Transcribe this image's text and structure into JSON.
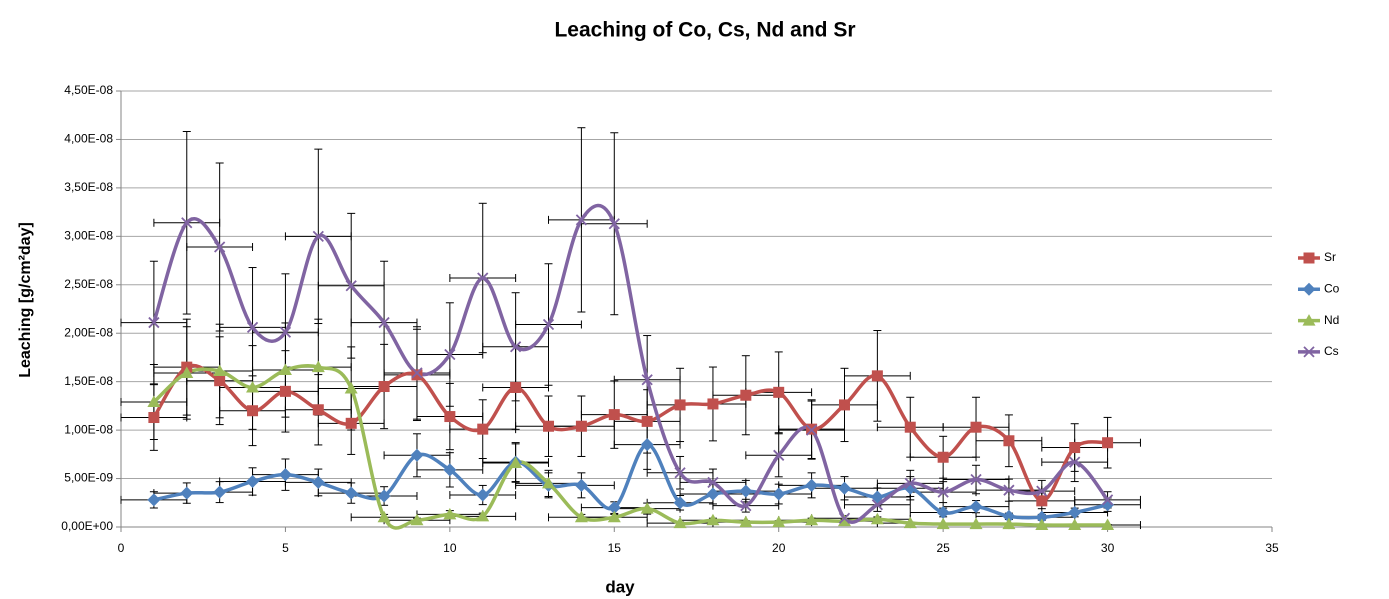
{
  "chart_data": {
    "type": "line",
    "title": "Leaching of Co, Cs, Nd and Sr",
    "x_label": "day",
    "y_label": "Leaching [g/cm²day]",
    "x": [
      1,
      2,
      3,
      4,
      5,
      6,
      7,
      8,
      9,
      10,
      11,
      12,
      13,
      14,
      15,
      16,
      17,
      18,
      19,
      20,
      21,
      22,
      23,
      24,
      25,
      26,
      27,
      28,
      29,
      30
    ],
    "series": [
      {
        "name": "Sr",
        "color": "#c0504d",
        "marker": "square",
        "values": [
          1.13e-08,
          1.65e-08,
          1.51e-08,
          1.2e-08,
          1.4e-08,
          1.21e-08,
          1.07e-08,
          1.45e-08,
          1.57e-08,
          1.14e-08,
          1.01e-08,
          1.44e-08,
          1.04e-08,
          1.04e-08,
          1.16e-08,
          1.09e-08,
          1.26e-08,
          1.27e-08,
          1.36e-08,
          1.39e-08,
          1.01e-08,
          1.26e-08,
          1.56e-08,
          1.03e-08,
          7.2e-09,
          1.03e-08,
          8.9e-09,
          2.7e-09,
          8.2e-09,
          8.7e-09
        ]
      },
      {
        "name": "Co",
        "color": "#4f81bd",
        "marker": "diamond",
        "values": [
          2.8e-09,
          3.5e-09,
          3.6e-09,
          4.7e-09,
          5.4e-09,
          4.6e-09,
          3.5e-09,
          3.2e-09,
          7.4e-09,
          5.9e-09,
          3.3e-09,
          6.7e-09,
          4.3e-09,
          4.3e-09,
          2e-09,
          8.5e-09,
          2.5e-09,
          3.4e-09,
          3.7e-09,
          3.4e-09,
          4.3e-09,
          4e-09,
          3.1e-09,
          4e-09,
          1.5e-09,
          2.1e-09,
          1.1e-09,
          1e-09,
          1.5e-09,
          2.3e-09
        ]
      },
      {
        "name": "Nd",
        "color": "#9bbb59",
        "marker": "triangle",
        "values": [
          1.29e-08,
          1.59e-08,
          1.61e-08,
          1.44e-08,
          1.62e-08,
          1.65e-08,
          1.43e-08,
          1e-09,
          7e-10,
          1.3e-09,
          1.1e-09,
          6.6e-09,
          4.5e-09,
          1e-09,
          1e-09,
          1.9e-09,
          4e-10,
          7e-10,
          5e-10,
          5e-10,
          7e-10,
          6e-10,
          8e-10,
          4e-10,
          3e-10,
          3e-10,
          3e-10,
          2e-10,
          2e-10,
          2e-10
        ]
      },
      {
        "name": "Cs",
        "color": "#8064a2",
        "marker": "cross",
        "values": [
          2.11e-08,
          3.14e-08,
          2.89e-08,
          2.06e-08,
          2.01e-08,
          3e-08,
          2.49e-08,
          2.11e-08,
          1.59e-08,
          1.78e-08,
          2.57e-08,
          1.86e-08,
          2.09e-08,
          3.17e-08,
          3.13e-08,
          1.52e-08,
          5.6e-09,
          4.6e-09,
          2.2e-09,
          7.4e-09,
          1e-08,
          9e-10,
          2.3e-09,
          4.5e-09,
          3.6e-09,
          4.9e-09,
          3.8e-09,
          3.7e-09,
          6.7e-09,
          2.8e-09
        ]
      }
    ],
    "y_error_percent": 30,
    "x_error": 1,
    "smooth": true,
    "xlim": [
      0,
      35
    ],
    "xticks": [
      0,
      5,
      10,
      15,
      20,
      25,
      30,
      35
    ],
    "ylim": [
      0,
      4.5e-08
    ],
    "yticks": [
      {
        "value": 0,
        "label": "0,00E+00"
      },
      {
        "value": 5e-09,
        "label": "5,00E-09"
      },
      {
        "value": 1e-08,
        "label": "1,00E-08"
      },
      {
        "value": 1.5e-08,
        "label": "1,50E-08"
      },
      {
        "value": 2e-08,
        "label": "2,00E-08"
      },
      {
        "value": 2.5e-08,
        "label": "2,50E-08"
      },
      {
        "value": 3e-08,
        "label": "3,00E-08"
      },
      {
        "value": 3.5e-08,
        "label": "3,50E-08"
      },
      {
        "value": 4e-08,
        "label": "4,00E-08"
      },
      {
        "value": 4.5e-08,
        "label": "4,50E-08"
      }
    ],
    "grid": true,
    "legend": "right"
  }
}
